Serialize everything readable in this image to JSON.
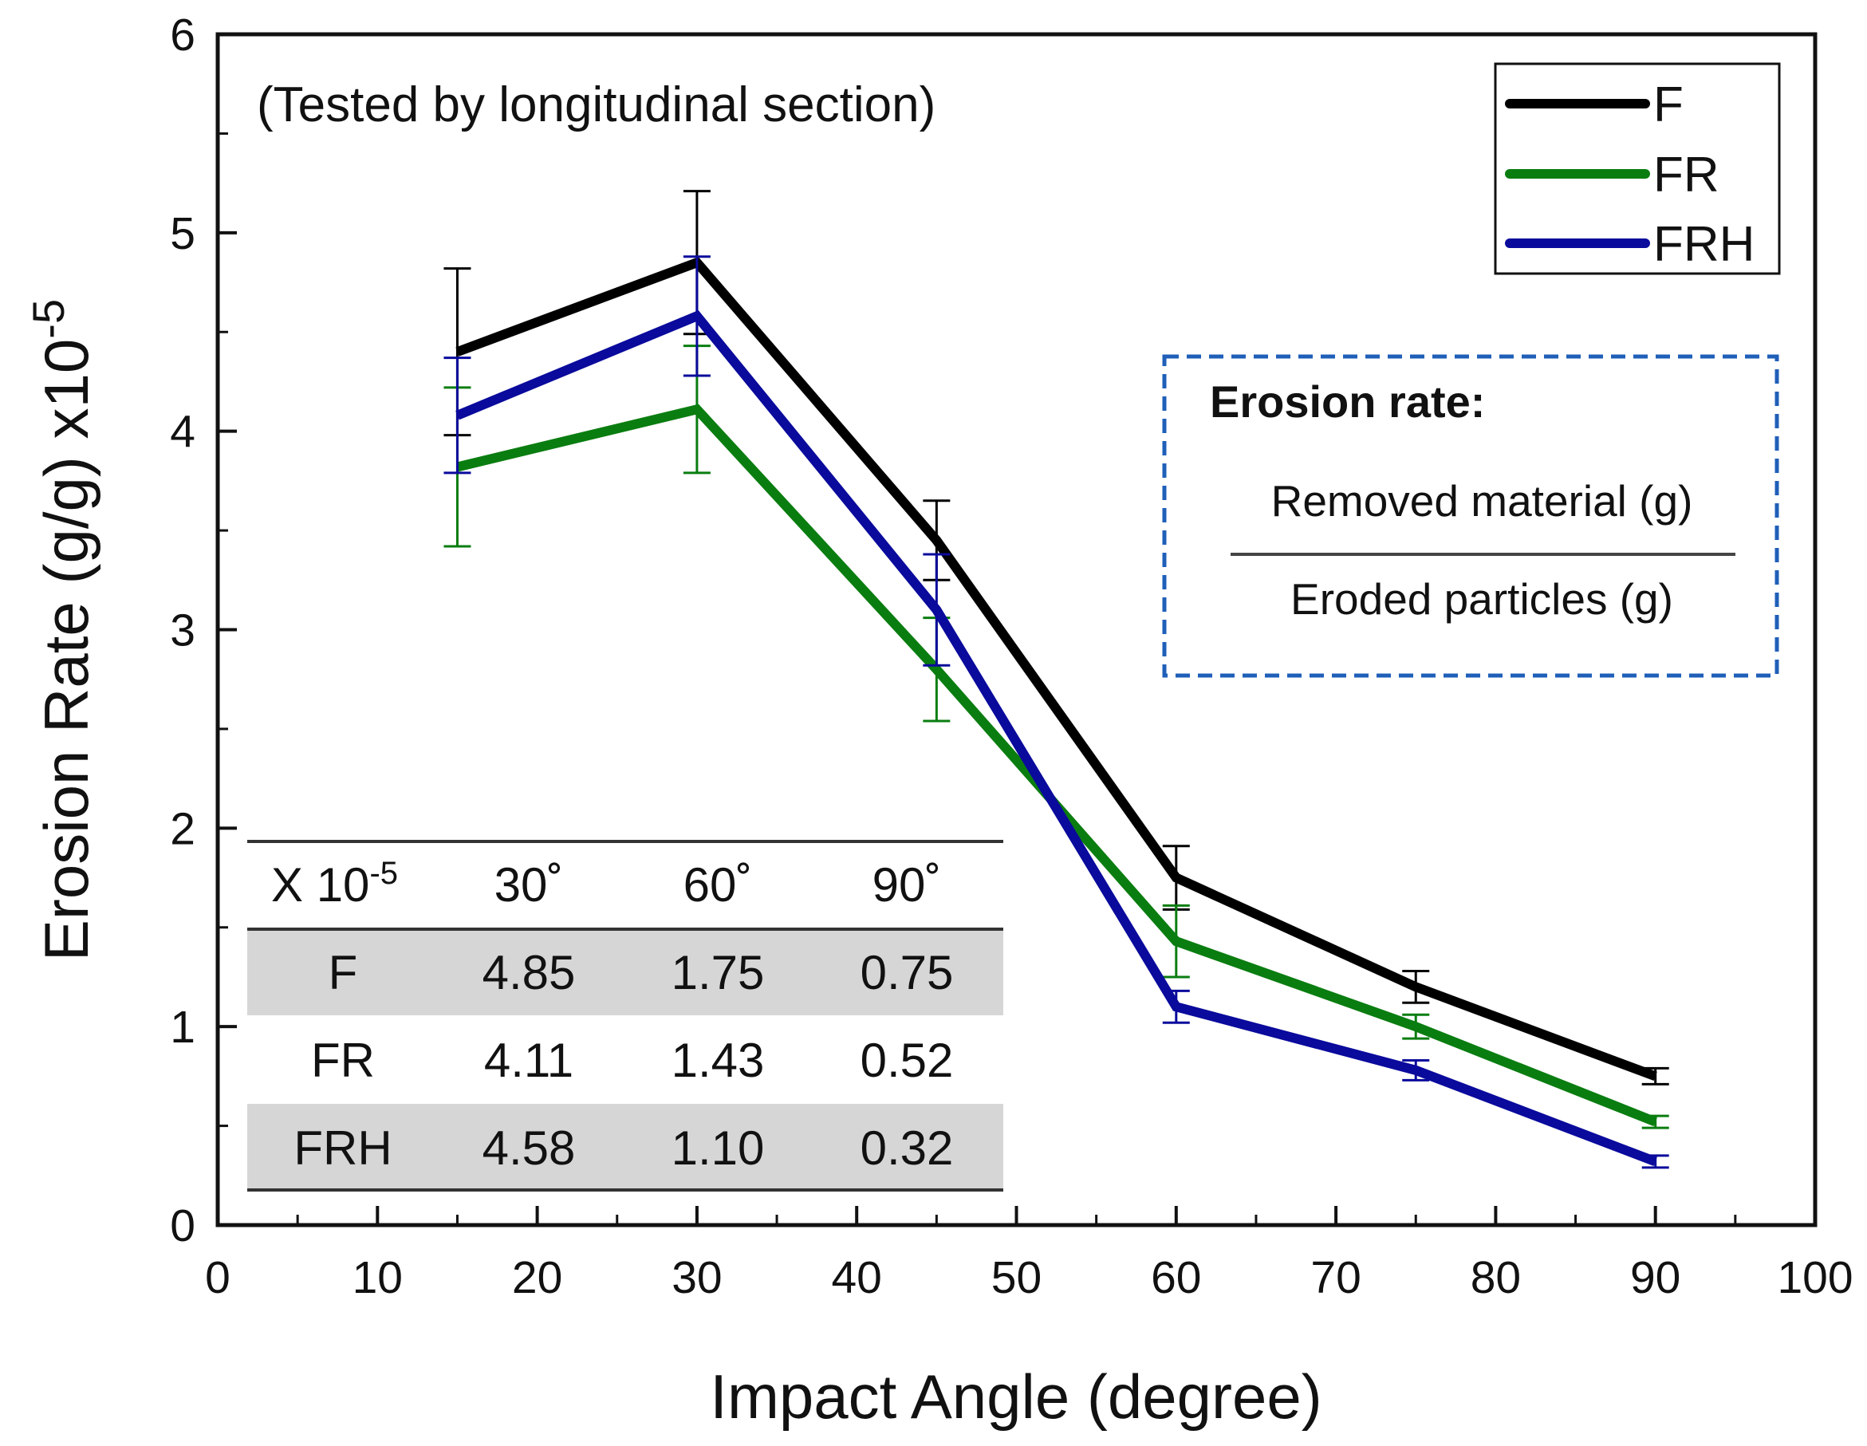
{
  "chart_data": {
    "type": "line",
    "title": "",
    "xlabel": "Impact Angle (degree)",
    "ylabel": "Erosion Rate (g/g) x10",
    "ylabel_exponent": "-5",
    "xlim": [
      0,
      100
    ],
    "ylim": [
      0,
      6
    ],
    "x_ticks": [
      "0",
      "10",
      "20",
      "30",
      "40",
      "50",
      "60",
      "70",
      "80",
      "90",
      "100"
    ],
    "y_ticks": [
      "0",
      "1",
      "2",
      "3",
      "4",
      "5",
      "6"
    ],
    "x": [
      15,
      30,
      45,
      60,
      75,
      90
    ],
    "series": [
      {
        "name": "F",
        "color": "#000000",
        "values": [
          4.4,
          4.85,
          3.45,
          1.75,
          1.2,
          0.75
        ],
        "errors": [
          0.42,
          0.36,
          0.2,
          0.16,
          0.08,
          0.04
        ]
      },
      {
        "name": "FR",
        "color": "#0a7d10",
        "values": [
          3.82,
          4.11,
          2.8,
          1.43,
          1.0,
          0.52
        ],
        "errors": [
          0.4,
          0.32,
          0.26,
          0.18,
          0.06,
          0.03
        ]
      },
      {
        "name": "FRH",
        "color": "#0a0a9c",
        "values": [
          4.08,
          4.58,
          3.1,
          1.1,
          0.78,
          0.32
        ],
        "errors": [
          0.29,
          0.3,
          0.28,
          0.08,
          0.05,
          0.03
        ]
      }
    ],
    "legend_position": "top-right",
    "annotation": "(Tested by longitudinal section)",
    "formula_box": {
      "title": "Erosion rate:",
      "numerator": "Removed material (g)",
      "denominator": "Eroded particles (g)"
    },
    "inset_table": {
      "header_label": "X 10",
      "header_exponent": "-5",
      "columns": [
        "30˚",
        "60˚",
        "90˚"
      ],
      "rows": [
        {
          "label": "F",
          "values": [
            "4.85",
            "1.75",
            "0.75"
          ]
        },
        {
          "label": "FR",
          "values": [
            "4.11",
            "1.43",
            "0.52"
          ]
        },
        {
          "label": "FRH",
          "values": [
            "4.58",
            "1.10",
            "0.32"
          ]
        }
      ]
    }
  }
}
